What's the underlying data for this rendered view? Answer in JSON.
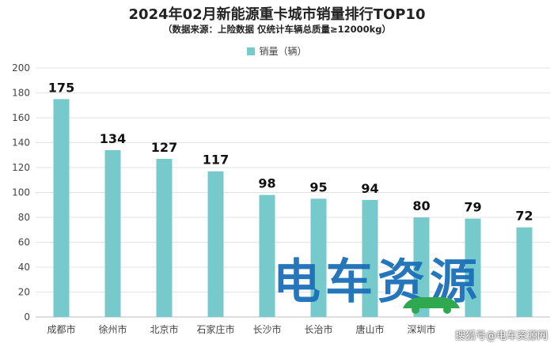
{
  "chart_data": {
    "type": "bar",
    "title": "2024年02月新能源重卡城市销量排行TOP10",
    "subtitle": "（数据来源：上险数据 仅统计车辆总质量≥12000kg）",
    "legend": [
      "销量（辆）"
    ],
    "legend_position": "top",
    "categories": [
      "成都市",
      "徐州市",
      "北京市",
      "石家庄市",
      "长沙市",
      "长治市",
      "唐山市",
      "深圳市",
      "",
      ""
    ],
    "series": [
      {
        "name": "销量（辆）",
        "values": [
          175,
          134,
          127,
          117,
          98,
          95,
          94,
          80,
          79,
          72
        ],
        "color": "#76CACB"
      }
    ],
    "ylim": [
      0,
      200
    ],
    "yticks": [
      0,
      20,
      40,
      60,
      80,
      100,
      120,
      140,
      160,
      180,
      200
    ],
    "grid": "horizontal",
    "data_labels": true
  },
  "watermark": {
    "logo_text": "电车资源",
    "credit_text": "搜狐号@电车资源网"
  }
}
